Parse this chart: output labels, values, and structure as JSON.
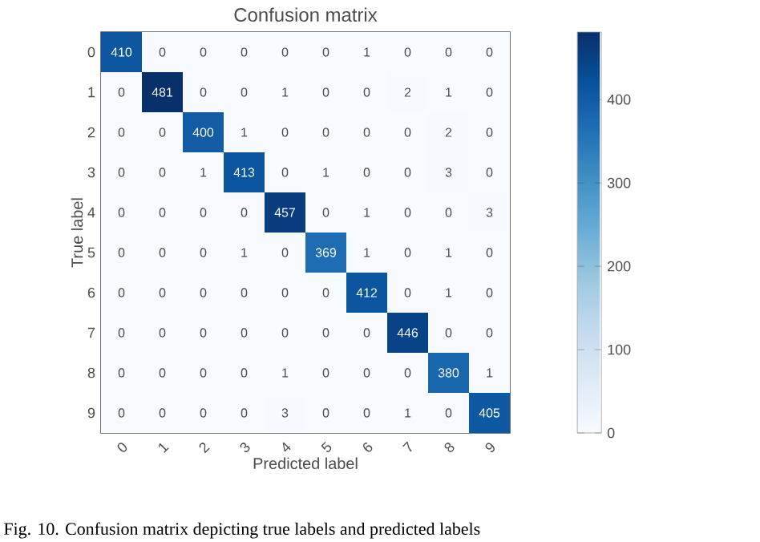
{
  "chart_data": {
    "type": "heatmap",
    "title": "Confusion matrix",
    "xlabel": "Predicted label",
    "ylabel": "True label",
    "categories": [
      "0",
      "1",
      "2",
      "3",
      "4",
      "5",
      "6",
      "7",
      "8",
      "9"
    ],
    "y_categories": [
      "0",
      "1",
      "2",
      "3",
      "4",
      "5",
      "6",
      "7",
      "8",
      "9"
    ],
    "cells": [
      [
        410,
        0,
        0,
        0,
        0,
        0,
        1,
        0,
        0,
        0
      ],
      [
        0,
        481,
        0,
        0,
        1,
        0,
        0,
        2,
        1,
        0
      ],
      [
        0,
        0,
        400,
        1,
        0,
        0,
        0,
        0,
        2,
        0
      ],
      [
        0,
        0,
        1,
        413,
        0,
        1,
        0,
        0,
        3,
        0
      ],
      [
        0,
        0,
        0,
        0,
        457,
        0,
        1,
        0,
        0,
        3
      ],
      [
        0,
        0,
        0,
        1,
        0,
        369,
        1,
        0,
        1,
        0
      ],
      [
        0,
        0,
        0,
        0,
        0,
        0,
        412,
        0,
        1,
        0
      ],
      [
        0,
        0,
        0,
        0,
        0,
        0,
        0,
        446,
        0,
        0
      ],
      [
        0,
        0,
        0,
        0,
        1,
        0,
        0,
        0,
        380,
        1
      ],
      [
        0,
        0,
        0,
        0,
        3,
        0,
        0,
        1,
        0,
        405
      ]
    ],
    "data_labels": true,
    "clim": [
      0,
      481
    ],
    "cticks": [
      0,
      100,
      200,
      300,
      400
    ],
    "annotations": [
      "Fig. 10. Confusion matrix depicting true labels and predicted labels"
    ]
  }
}
